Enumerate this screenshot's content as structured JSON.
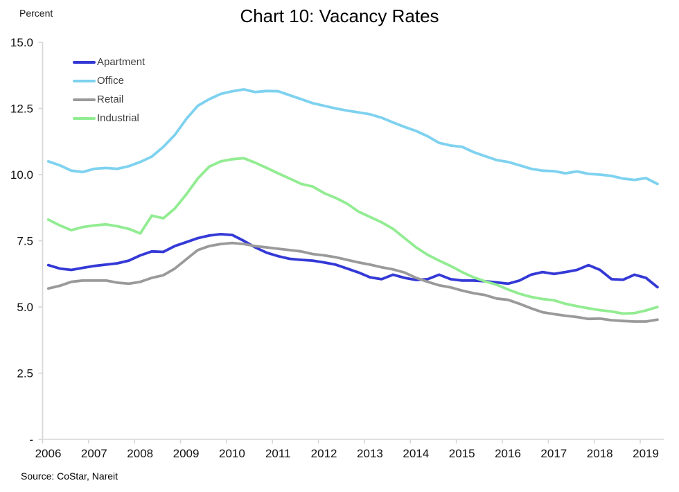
{
  "title": "Chart 10: Vacancy Rates",
  "y_axis_title": "Percent",
  "source": "Source: CoStar, Nareit",
  "colors": {
    "axis": "#d6d6d6",
    "axis_text": "#111111",
    "legend_text": "#404040",
    "background": "#ffffff"
  },
  "chart_data": {
    "type": "line",
    "title": "Chart 10: Vacancy Rates",
    "xlabel": "",
    "ylabel": "Percent",
    "ylim": [
      0,
      15
    ],
    "grid": false,
    "legend_position": "top-left-inside",
    "x_unit": "quarterly, 2006Q1 - 2019Q2",
    "x_tick_labels": [
      "2006",
      "2007",
      "2008",
      "2009",
      "2010",
      "2011",
      "2012",
      "2013",
      "2014",
      "2015",
      "2016",
      "2017",
      "2018",
      "2019"
    ],
    "y_tick_labels": [
      "15.0",
      "12.5",
      "10.0",
      "7.5",
      "5.0",
      "2.5",
      "-"
    ],
    "y_tick_values": [
      15,
      12.5,
      10,
      7.5,
      5,
      2.5,
      0
    ],
    "series": [
      {
        "name": "Apartment",
        "color": "#3439d6",
        "values": [
          6.58,
          6.45,
          6.4,
          6.48,
          6.55,
          6.6,
          6.65,
          6.75,
          6.95,
          7.1,
          7.08,
          7.3,
          7.45,
          7.6,
          7.7,
          7.75,
          7.72,
          7.5,
          7.25,
          7.05,
          6.92,
          6.82,
          6.78,
          6.75,
          6.68,
          6.6,
          6.45,
          6.3,
          6.12,
          6.05,
          6.22,
          6.1,
          6.02,
          6.05,
          6.22,
          6.05,
          6.0,
          6.0,
          5.97,
          5.93,
          5.88,
          6.0,
          6.22,
          6.32,
          6.25,
          6.32,
          6.4,
          6.58,
          6.4,
          6.05,
          6.03,
          6.22,
          6.1,
          5.75
        ]
      },
      {
        "name": "Office",
        "color": "#7ed2ef",
        "values": [
          10.5,
          10.35,
          10.15,
          10.1,
          10.22,
          10.25,
          10.22,
          10.32,
          10.48,
          10.68,
          11.05,
          11.5,
          12.1,
          12.6,
          12.85,
          13.05,
          13.15,
          13.22,
          13.12,
          13.16,
          13.15,
          13.0,
          12.85,
          12.7,
          12.6,
          12.5,
          12.42,
          12.35,
          12.28,
          12.15,
          11.97,
          11.8,
          11.65,
          11.45,
          11.2,
          11.1,
          11.05,
          10.85,
          10.7,
          10.55,
          10.48,
          10.35,
          10.22,
          10.15,
          10.13,
          10.05,
          10.12,
          10.03,
          10.0,
          9.95,
          9.85,
          9.8,
          9.87,
          9.65
        ]
      },
      {
        "name": "Retail",
        "color": "#9a9a9a",
        "values": [
          5.7,
          5.8,
          5.95,
          6.0,
          6.0,
          6.0,
          5.92,
          5.88,
          5.95,
          6.1,
          6.2,
          6.45,
          6.8,
          7.15,
          7.3,
          7.38,
          7.42,
          7.38,
          7.3,
          7.25,
          7.2,
          7.15,
          7.1,
          7.0,
          6.95,
          6.88,
          6.78,
          6.68,
          6.6,
          6.5,
          6.42,
          6.3,
          6.1,
          5.95,
          5.82,
          5.74,
          5.62,
          5.52,
          5.45,
          5.32,
          5.27,
          5.12,
          4.95,
          4.8,
          4.73,
          4.67,
          4.62,
          4.55,
          4.56,
          4.5,
          4.47,
          4.45,
          4.45,
          4.52
        ]
      },
      {
        "name": "Industrial",
        "color": "#92ec92",
        "values": [
          8.3,
          8.08,
          7.9,
          8.02,
          8.08,
          8.12,
          8.05,
          7.95,
          7.78,
          8.45,
          8.35,
          8.72,
          9.25,
          9.85,
          10.3,
          10.5,
          10.58,
          10.62,
          10.45,
          10.25,
          10.05,
          9.85,
          9.65,
          9.55,
          9.3,
          9.12,
          8.9,
          8.6,
          8.4,
          8.2,
          7.95,
          7.6,
          7.25,
          6.97,
          6.75,
          6.55,
          6.32,
          6.12,
          5.97,
          5.84,
          5.66,
          5.5,
          5.38,
          5.3,
          5.25,
          5.12,
          5.03,
          4.95,
          4.88,
          4.83,
          4.75,
          4.77,
          4.87,
          5.0
        ]
      }
    ]
  }
}
